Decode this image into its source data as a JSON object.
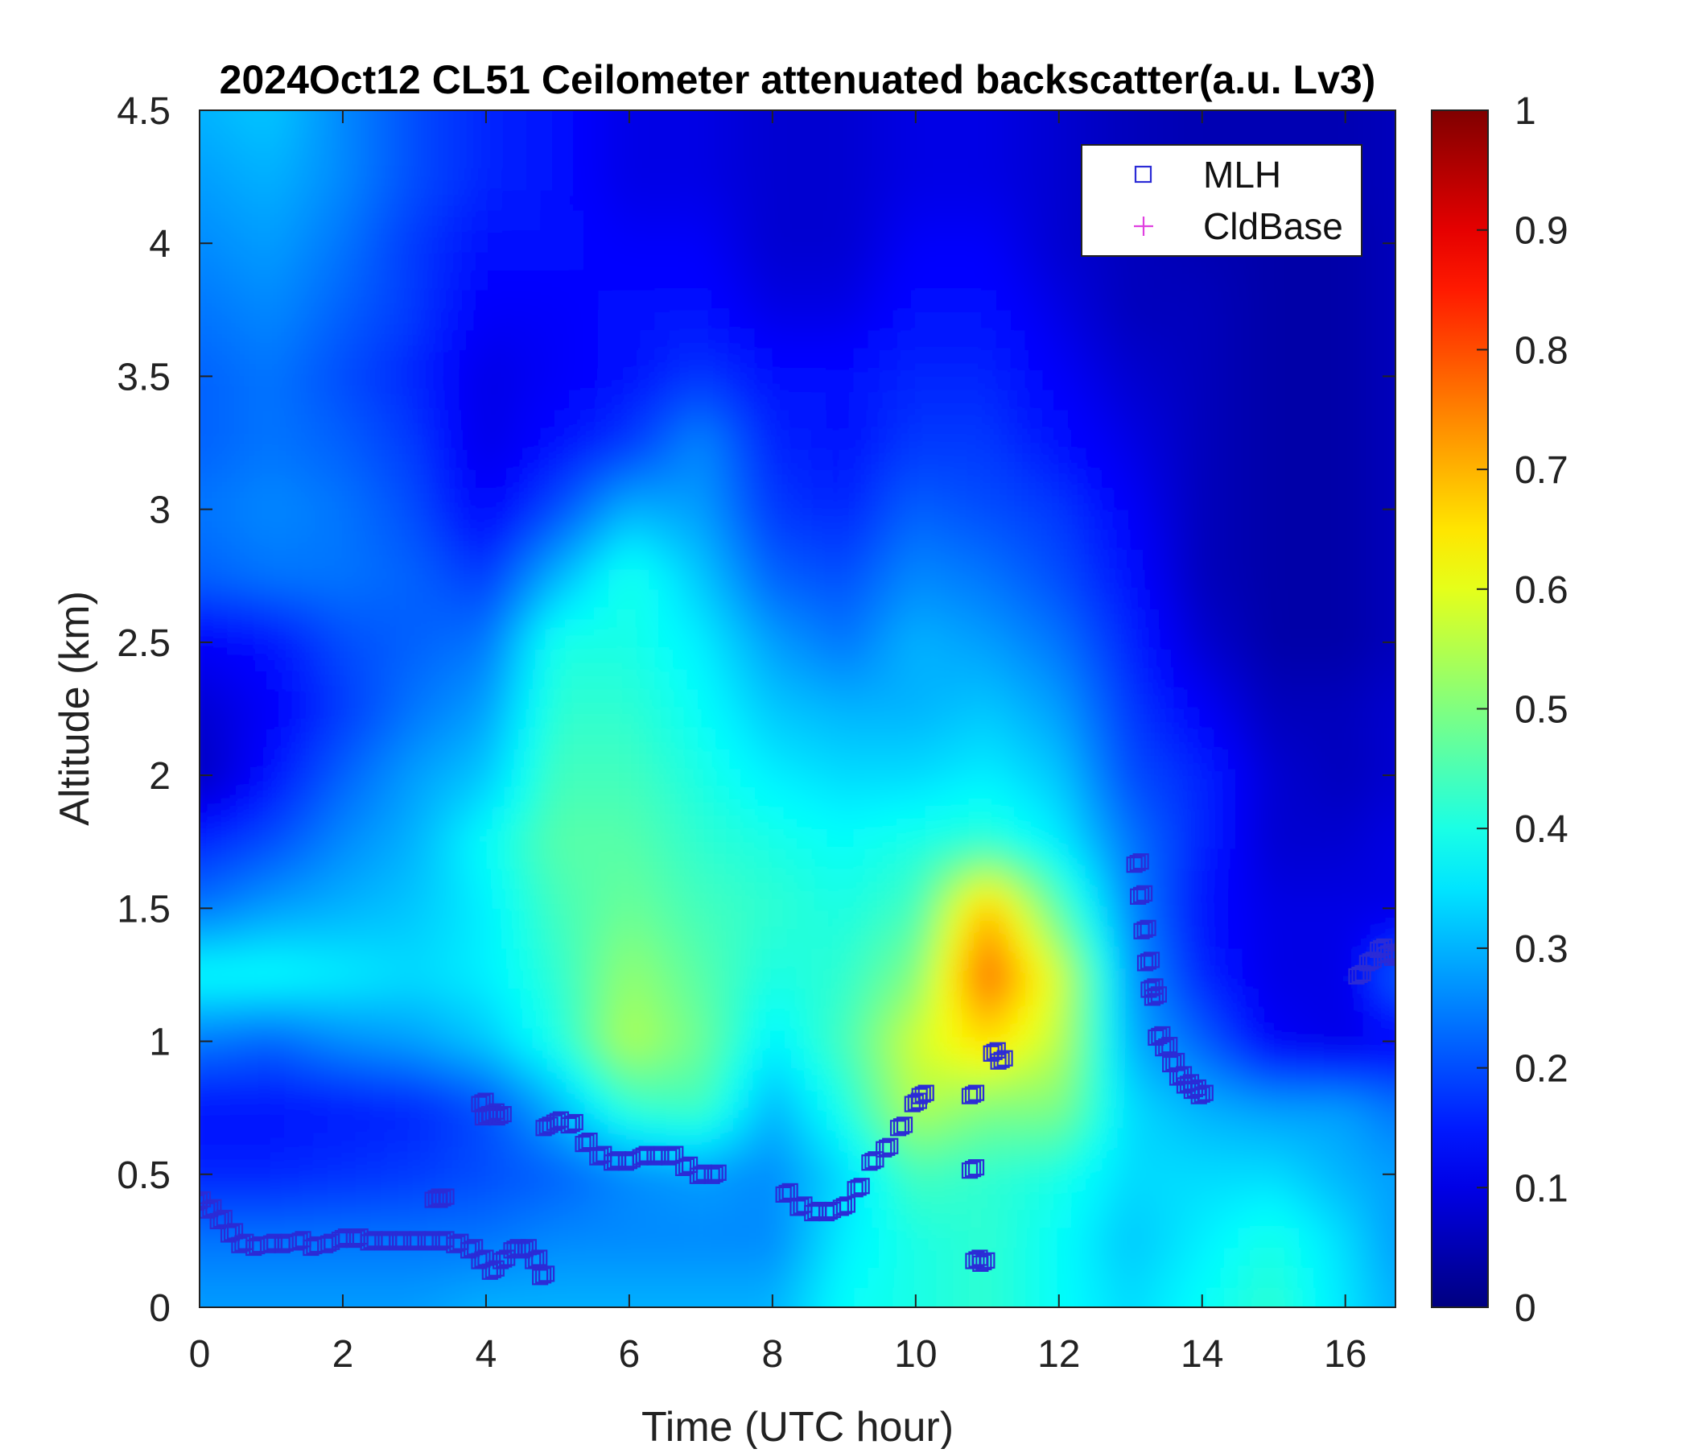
{
  "chart_data": {
    "type": "heatmap",
    "title": "2024Oct12 CL51 Ceilometer attenuated backscatter(a.u. Lv3)",
    "xlabel": "Time (UTC hour)",
    "ylabel": "Altitude (km)",
    "xlim": [
      0,
      16.7
    ],
    "ylim": [
      0,
      4.5
    ],
    "xticks": [
      0,
      2,
      4,
      6,
      8,
      10,
      12,
      14,
      16
    ],
    "xtick_labels": [
      "0",
      "2",
      "4",
      "6",
      "8",
      "10",
      "12",
      "14",
      "16"
    ],
    "yticks": [
      0,
      0.5,
      1,
      1.5,
      2,
      2.5,
      3,
      3.5,
      4,
      4.5
    ],
    "ytick_labels": [
      "0",
      "0.5",
      "1",
      "1.5",
      "2",
      "2.5",
      "3",
      "3.5",
      "4",
      "4.5"
    ],
    "colorbar": {
      "colormap": "jet",
      "range": [
        0,
        1
      ],
      "ticks": [
        0,
        0.1,
        0.2,
        0.3,
        0.4,
        0.5,
        0.6,
        0.7,
        0.8,
        0.9,
        1
      ],
      "tick_labels": [
        "0",
        "0.1",
        "0.2",
        "0.3",
        "0.4",
        "0.5",
        "0.6",
        "0.7",
        "0.8",
        "0.9",
        "1"
      ]
    },
    "grid": false,
    "legend": {
      "placement": "top-right",
      "entries": [
        {
          "label": "MLH",
          "marker": "square",
          "color": "#2b2bd6"
        },
        {
          "label": "CldBase",
          "marker": "plus",
          "color": "#e040e0"
        }
      ]
    },
    "heatmap": {
      "description": "approximate attenuated backscatter field (a.u.)",
      "times": [
        0,
        1,
        2,
        3,
        4,
        5,
        6,
        7,
        8,
        9,
        10,
        11,
        12,
        13,
        14,
        15,
        16,
        16.7
      ],
      "altitudes": [
        0,
        0.25,
        0.5,
        0.75,
        1,
        1.25,
        1.5,
        1.75,
        2,
        2.25,
        2.5,
        2.75,
        3,
        3.25,
        3.5,
        3.75,
        4,
        4.25,
        4.5
      ],
      "values": [
        [
          0.28,
          0.28,
          0.28,
          0.28,
          0.3,
          0.3,
          0.3,
          0.3,
          0.3,
          0.38,
          0.4,
          0.42,
          0.38,
          0.34,
          0.38,
          0.42,
          0.35,
          0.3
        ],
        [
          0.24,
          0.24,
          0.24,
          0.24,
          0.24,
          0.26,
          0.26,
          0.26,
          0.26,
          0.36,
          0.4,
          0.42,
          0.38,
          0.32,
          0.36,
          0.4,
          0.34,
          0.28
        ],
        [
          0.16,
          0.16,
          0.17,
          0.18,
          0.2,
          0.22,
          0.26,
          0.28,
          0.26,
          0.34,
          0.44,
          0.42,
          0.4,
          0.34,
          0.34,
          0.34,
          0.3,
          0.28
        ],
        [
          0.14,
          0.14,
          0.15,
          0.16,
          0.2,
          0.3,
          0.42,
          0.44,
          0.3,
          0.4,
          0.55,
          0.5,
          0.5,
          0.34,
          0.3,
          0.28,
          0.28,
          0.24
        ],
        [
          0.24,
          0.22,
          0.26,
          0.28,
          0.32,
          0.4,
          0.55,
          0.48,
          0.36,
          0.44,
          0.58,
          0.66,
          0.56,
          0.3,
          0.22,
          0.12,
          0.1,
          0.12
        ],
        [
          0.38,
          0.38,
          0.36,
          0.34,
          0.36,
          0.42,
          0.52,
          0.46,
          0.4,
          0.42,
          0.5,
          0.78,
          0.58,
          0.28,
          0.16,
          0.1,
          0.1,
          0.22
        ],
        [
          0.24,
          0.28,
          0.3,
          0.32,
          0.36,
          0.44,
          0.48,
          0.44,
          0.42,
          0.4,
          0.44,
          0.7,
          0.46,
          0.26,
          0.14,
          0.1,
          0.1,
          0.1
        ],
        [
          0.16,
          0.2,
          0.26,
          0.3,
          0.38,
          0.46,
          0.46,
          0.42,
          0.4,
          0.38,
          0.4,
          0.42,
          0.36,
          0.24,
          0.16,
          0.08,
          0.08,
          0.1
        ],
        [
          0.06,
          0.14,
          0.22,
          0.28,
          0.32,
          0.44,
          0.44,
          0.4,
          0.36,
          0.34,
          0.34,
          0.36,
          0.32,
          0.2,
          0.16,
          0.08,
          0.06,
          0.08
        ],
        [
          0.08,
          0.12,
          0.18,
          0.24,
          0.28,
          0.42,
          0.42,
          0.38,
          0.32,
          0.3,
          0.3,
          0.32,
          0.28,
          0.18,
          0.12,
          0.06,
          0.06,
          0.08
        ],
        [
          0.12,
          0.14,
          0.2,
          0.22,
          0.24,
          0.4,
          0.4,
          0.36,
          0.28,
          0.24,
          0.3,
          0.28,
          0.24,
          0.16,
          0.08,
          0.04,
          0.04,
          0.06
        ],
        [
          0.22,
          0.24,
          0.24,
          0.22,
          0.18,
          0.3,
          0.4,
          0.32,
          0.22,
          0.2,
          0.26,
          0.24,
          0.2,
          0.14,
          0.06,
          0.04,
          0.04,
          0.06
        ],
        [
          0.24,
          0.26,
          0.24,
          0.2,
          0.12,
          0.2,
          0.3,
          0.28,
          0.18,
          0.16,
          0.22,
          0.2,
          0.18,
          0.12,
          0.06,
          0.04,
          0.04,
          0.06
        ],
        [
          0.22,
          0.24,
          0.22,
          0.18,
          0.1,
          0.14,
          0.18,
          0.26,
          0.16,
          0.14,
          0.18,
          0.18,
          0.14,
          0.1,
          0.06,
          0.04,
          0.04,
          0.06
        ],
        [
          0.22,
          0.24,
          0.2,
          0.16,
          0.1,
          0.12,
          0.14,
          0.18,
          0.14,
          0.14,
          0.16,
          0.16,
          0.12,
          0.08,
          0.06,
          0.04,
          0.04,
          0.06
        ],
        [
          0.24,
          0.26,
          0.22,
          0.18,
          0.12,
          0.12,
          0.14,
          0.14,
          0.1,
          0.1,
          0.14,
          0.14,
          0.1,
          0.06,
          0.06,
          0.04,
          0.04,
          0.06
        ],
        [
          0.26,
          0.28,
          0.24,
          0.18,
          0.14,
          0.14,
          0.12,
          0.12,
          0.08,
          0.08,
          0.12,
          0.12,
          0.08,
          0.06,
          0.05,
          0.04,
          0.04,
          0.06
        ],
        [
          0.28,
          0.3,
          0.26,
          0.2,
          0.16,
          0.14,
          0.1,
          0.1,
          0.08,
          0.08,
          0.1,
          0.1,
          0.08,
          0.06,
          0.05,
          0.05,
          0.05,
          0.06
        ],
        [
          0.3,
          0.32,
          0.26,
          0.2,
          0.16,
          0.14,
          0.1,
          0.1,
          0.08,
          0.08,
          0.1,
          0.1,
          0.08,
          0.06,
          0.05,
          0.05,
          0.05,
          0.06
        ]
      ]
    },
    "series": [
      {
        "name": "MLH",
        "marker": "square",
        "color": "#2b2bd6",
        "x": [
          0.0,
          0.15,
          0.3,
          0.45,
          0.6,
          0.8,
          1.0,
          1.2,
          1.4,
          1.6,
          1.8,
          2.0,
          2.2,
          2.4,
          2.6,
          2.8,
          3.0,
          3.2,
          3.4,
          3.6,
          3.8,
          3.95,
          4.1,
          4.25,
          4.4,
          4.55,
          4.7,
          4.8,
          3.3,
          3.4,
          3.95,
          4.0,
          4.1,
          4.2,
          4.85,
          5.0,
          5.2,
          5.4,
          5.6,
          5.8,
          6.0,
          6.2,
          6.4,
          6.6,
          6.8,
          7.0,
          7.2,
          8.2,
          8.4,
          8.6,
          8.8,
          9.0,
          9.2,
          9.4,
          9.6,
          9.8,
          10.0,
          10.1,
          10.8,
          10.8,
          10.85,
          10.95,
          11.1,
          11.2,
          13.1,
          13.15,
          13.2,
          13.25,
          13.3,
          13.35,
          13.4,
          13.5,
          13.6,
          13.7,
          13.8,
          13.9,
          14.0,
          16.2,
          16.35,
          16.5,
          16.6,
          16.7
        ],
        "y": [
          0.4,
          0.37,
          0.33,
          0.28,
          0.24,
          0.23,
          0.24,
          0.24,
          0.25,
          0.23,
          0.24,
          0.26,
          0.26,
          0.25,
          0.25,
          0.25,
          0.25,
          0.25,
          0.25,
          0.24,
          0.22,
          0.18,
          0.14,
          0.18,
          0.22,
          0.22,
          0.18,
          0.12,
          0.41,
          0.41,
          0.77,
          0.72,
          0.73,
          0.72,
          0.68,
          0.7,
          0.69,
          0.62,
          0.57,
          0.55,
          0.55,
          0.57,
          0.57,
          0.57,
          0.53,
          0.5,
          0.5,
          0.43,
          0.38,
          0.36,
          0.36,
          0.38,
          0.45,
          0.55,
          0.6,
          0.68,
          0.77,
          0.8,
          0.8,
          0.52,
          0.18,
          0.17,
          0.96,
          0.93,
          1.67,
          1.55,
          1.42,
          1.3,
          1.2,
          1.17,
          1.02,
          0.98,
          0.92,
          0.87,
          0.84,
          0.82,
          0.8,
          1.25,
          1.3,
          1.35,
          1.33,
          1.32
        ]
      },
      {
        "name": "CldBase",
        "marker": "plus",
        "color": "#e040e0",
        "x": [],
        "y": []
      }
    ]
  }
}
